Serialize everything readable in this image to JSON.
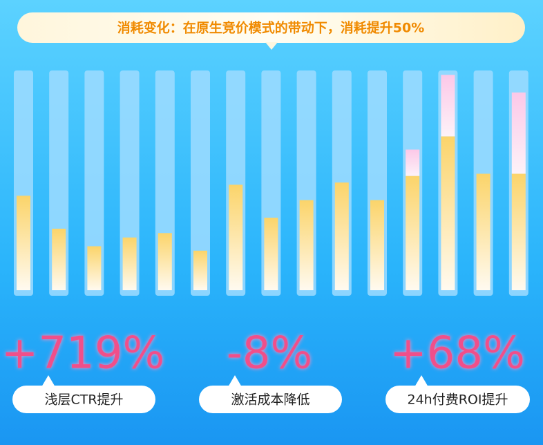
{
  "chart_data": {
    "type": "bar",
    "title": "消耗变化：在原生竞价模式的带动下，消耗提升50%",
    "categories": [
      null,
      null,
      null,
      null,
      null,
      null,
      null,
      null,
      null,
      null,
      null,
      null,
      null,
      null,
      null
    ],
    "series": [
      {
        "color": "#fbd46a",
        "values": [
          43,
          28,
          20,
          24,
          26,
          18,
          48,
          33,
          41,
          49,
          41,
          52,
          70,
          53,
          53
        ]
      },
      {
        "color": "#fcc8e8",
        "values": [
          0,
          0,
          0,
          0,
          0,
          0,
          0,
          0,
          0,
          0,
          0,
          12,
          28,
          0,
          37
        ]
      }
    ],
    "ylim": [
      0,
      100
    ],
    "stats": [
      {
        "value": "+719%",
        "label": "浅层CTR提升"
      },
      {
        "value": "-8%",
        "label": "激活成本降低"
      },
      {
        "value": "+68%",
        "label": "24h付费ROI提升"
      }
    ]
  }
}
